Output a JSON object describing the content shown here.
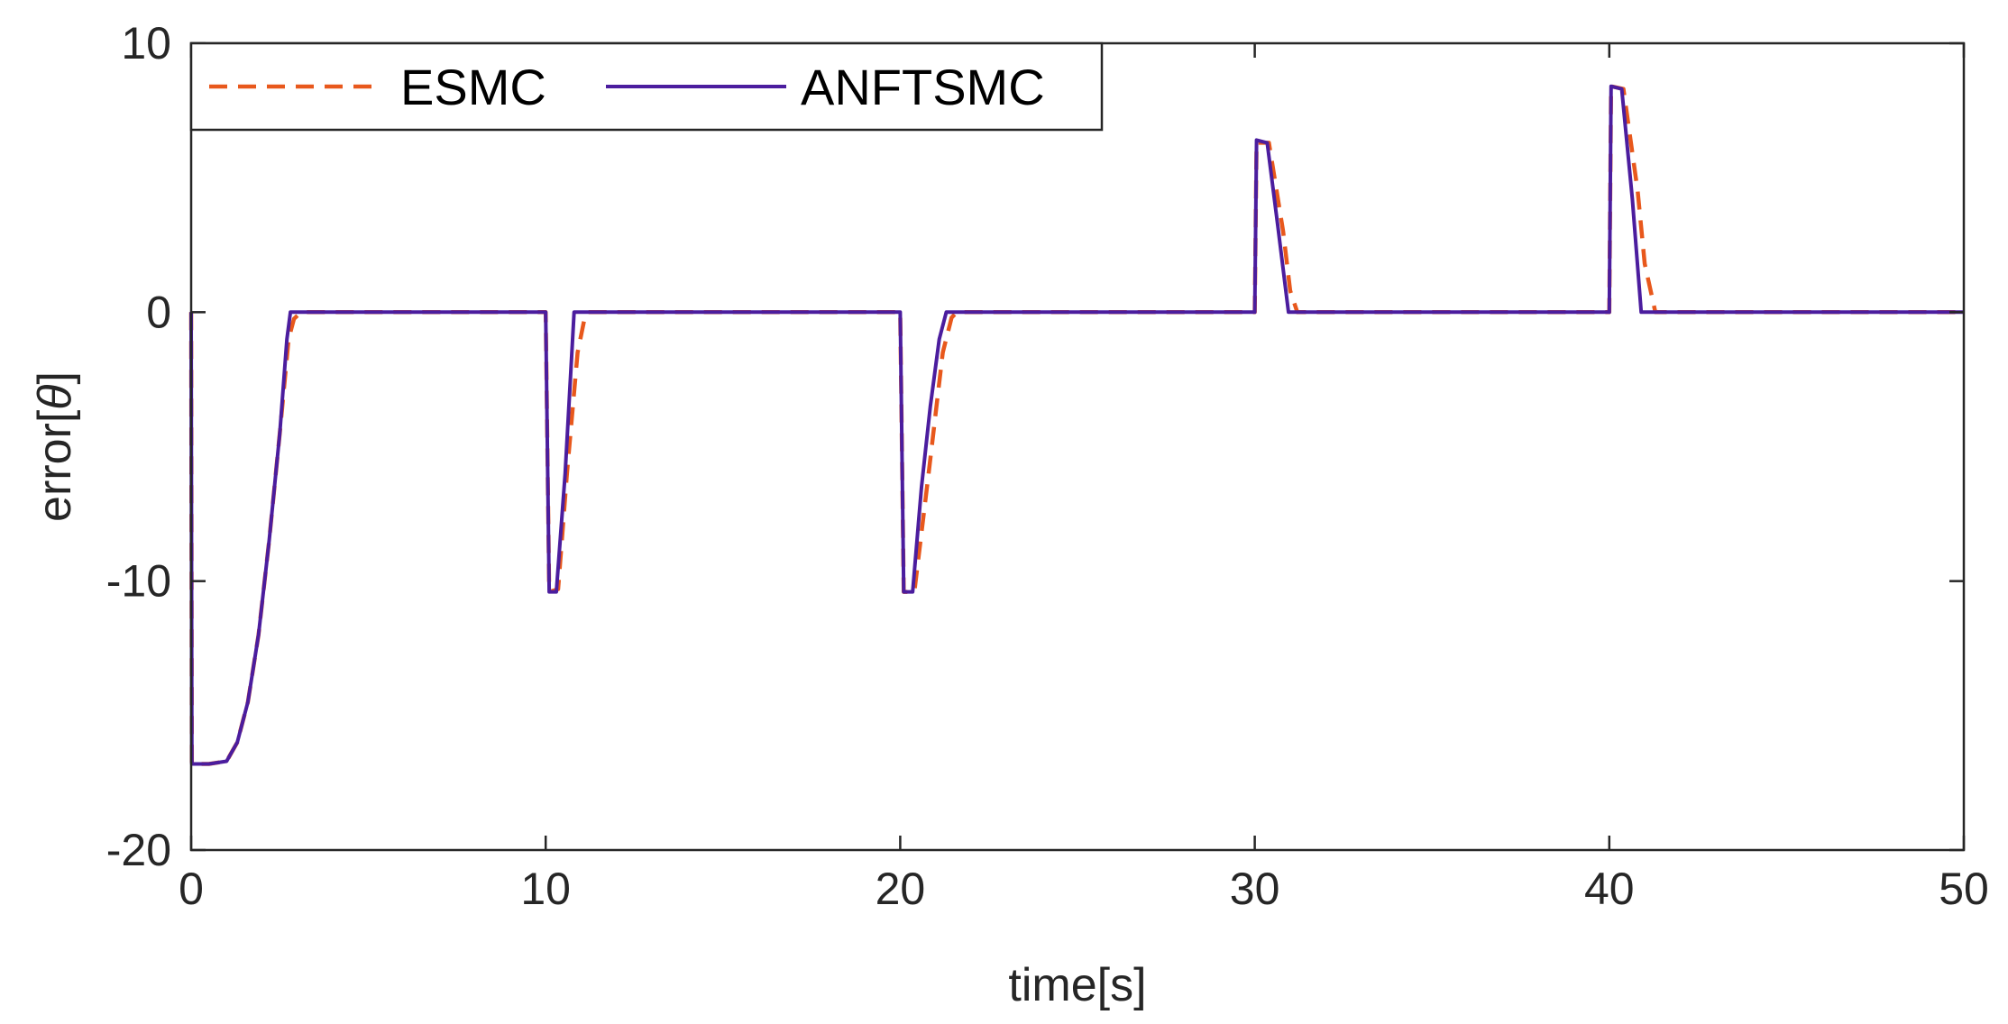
{
  "chart_data": {
    "type": "line",
    "title": "",
    "xlabel": "time[s]",
    "ylabel_prefix": "error[",
    "ylabel_symbol": "θ",
    "ylabel_suffix": "]",
    "xlim": [
      0,
      50
    ],
    "ylim": [
      -20,
      10
    ],
    "xticks": [
      0,
      10,
      20,
      30,
      40,
      50
    ],
    "yticks": [
      -20,
      -10,
      0,
      10
    ],
    "xtick_labels": [
      "0",
      "10",
      "20",
      "30",
      "40",
      "50"
    ],
    "ytick_labels": [
      "-20",
      "-10",
      "0",
      "10"
    ],
    "grid": false,
    "legend": {
      "placement": "top-left",
      "orientation": "horizontal"
    },
    "series": [
      {
        "name": "ESMC",
        "style": "dashed",
        "color": "#e8581c",
        "x": [
          0,
          0.02,
          0.1,
          0.5,
          1.0,
          1.3,
          1.6,
          1.9,
          2.2,
          2.5,
          2.75,
          2.9,
          3.1,
          10.0,
          10.1,
          10.35,
          10.6,
          10.9,
          11.1,
          11.2,
          20.0,
          20.1,
          20.4,
          20.8,
          21.2,
          21.45,
          21.6,
          30.0,
          30.05,
          30.4,
          30.8,
          31.0,
          31.2,
          40.0,
          40.05,
          40.4,
          40.8,
          41.0,
          41.3,
          50
        ],
        "y": [
          0,
          -16.8,
          -16.8,
          -16.8,
          -16.7,
          -16.0,
          -14.5,
          -12.0,
          -8.5,
          -4.5,
          -1.0,
          -0.25,
          0,
          0,
          -10.4,
          -10.3,
          -6.0,
          -1.5,
          -0.2,
          0,
          0,
          -10.4,
          -10.4,
          -6.0,
          -1.5,
          -0.2,
          0,
          0,
          6.3,
          6.3,
          3.0,
          0.8,
          0,
          0,
          8.4,
          8.3,
          4.5,
          1.8,
          0,
          0
        ]
      },
      {
        "name": "ANFTSMC",
        "style": "solid",
        "color": "#4b1d9e",
        "x": [
          0,
          0.02,
          0.1,
          0.5,
          1.0,
          1.3,
          1.6,
          1.9,
          2.2,
          2.5,
          2.7,
          2.8,
          10.0,
          10.1,
          10.3,
          10.55,
          10.8,
          20.0,
          20.1,
          20.35,
          20.6,
          20.85,
          21.1,
          21.3,
          30.0,
          30.05,
          30.35,
          30.65,
          30.95,
          40.0,
          40.05,
          40.35,
          40.65,
          40.9,
          50
        ],
        "y": [
          0,
          -16.8,
          -16.8,
          -16.8,
          -16.7,
          -16.0,
          -14.5,
          -12.0,
          -8.5,
          -4.5,
          -1.0,
          0,
          0,
          -10.4,
          -10.4,
          -6.0,
          0,
          0,
          -10.4,
          -10.4,
          -6.5,
          -3.5,
          -1.0,
          0,
          0,
          6.4,
          6.3,
          3.2,
          0,
          0,
          8.4,
          8.3,
          4.2,
          0,
          0
        ]
      }
    ]
  }
}
